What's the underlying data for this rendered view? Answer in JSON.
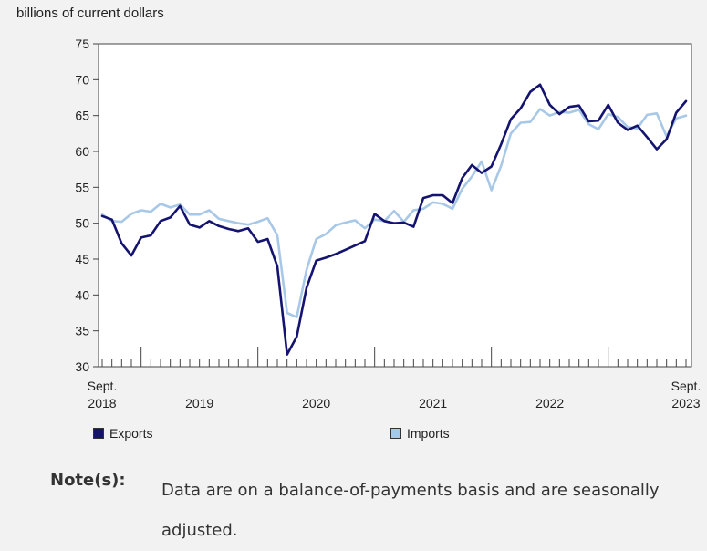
{
  "chart_data": {
    "type": "line",
    "unit_label": "billions of current dollars",
    "y_range": [
      30,
      75
    ],
    "y_ticks": [
      30,
      35,
      40,
      45,
      50,
      55,
      60,
      65,
      70,
      75
    ],
    "x_start": "2018-09",
    "x_end": "2023-09",
    "x_labels": [
      {
        "month": "2018-09",
        "line1": "Sept.",
        "line2": "2018"
      },
      {
        "month": "2019-07",
        "line1": "",
        "line2": "2019"
      },
      {
        "month": "2020-07",
        "line1": "",
        "line2": "2020"
      },
      {
        "month": "2021-07",
        "line1": "",
        "line2": "2021"
      },
      {
        "month": "2022-07",
        "line1": "",
        "line2": "2022"
      },
      {
        "month": "2023-09",
        "line1": "Sept.",
        "line2": "2023"
      }
    ],
    "major_ticks": [
      "2019-01",
      "2020-01",
      "2021-01",
      "2022-01",
      "2023-01"
    ],
    "grid": false,
    "legend_position": "bottom",
    "series": [
      {
        "name": "Exports",
        "color": "#141470",
        "values": [
          51.0,
          50.5,
          47.2,
          45.5,
          48.0,
          48.3,
          50.3,
          50.8,
          52.4,
          49.8,
          49.4,
          50.3,
          49.6,
          49.2,
          48.9,
          49.3,
          47.4,
          47.8,
          44.0,
          31.7,
          34.2,
          41.0,
          44.8,
          45.2,
          45.7,
          46.3,
          46.9,
          47.5,
          51.3,
          50.3,
          50.0,
          50.1,
          49.5,
          53.5,
          53.9,
          53.9,
          52.8,
          56.3,
          58.1,
          57.0,
          57.9,
          61.0,
          64.5,
          66.0,
          68.3,
          69.3,
          66.5,
          65.2,
          66.2,
          66.4,
          64.2,
          64.3,
          66.5,
          64.0,
          63.0,
          63.6,
          62.0,
          60.3,
          61.7,
          65.4,
          67.0
        ],
        "mark_name": "exports-line"
      },
      {
        "name": "Imports",
        "color": "#a8c8e8",
        "values": [
          51.2,
          50.3,
          50.2,
          51.3,
          51.8,
          51.6,
          52.7,
          52.2,
          52.6,
          51.2,
          51.2,
          51.8,
          50.6,
          50.3,
          50.0,
          49.8,
          50.2,
          50.7,
          48.3,
          37.5,
          36.9,
          43.5,
          47.8,
          48.5,
          49.7,
          50.1,
          50.4,
          49.3,
          50.5,
          50.3,
          51.7,
          50.2,
          51.8,
          52.0,
          52.9,
          52.7,
          52.0,
          54.8,
          56.5,
          58.6,
          54.6,
          58.0,
          62.5,
          64.0,
          64.1,
          65.9,
          65.0,
          65.5,
          65.4,
          65.8,
          63.8,
          63.1,
          65.2,
          64.8,
          63.4,
          63.2,
          65.1,
          65.3,
          62.1,
          64.6,
          65.0
        ],
        "mark_name": "imports-line"
      }
    ]
  },
  "note": {
    "label": "Note(s):",
    "text": "Data are on a balance-of-payments basis and are seasonally adjusted."
  }
}
